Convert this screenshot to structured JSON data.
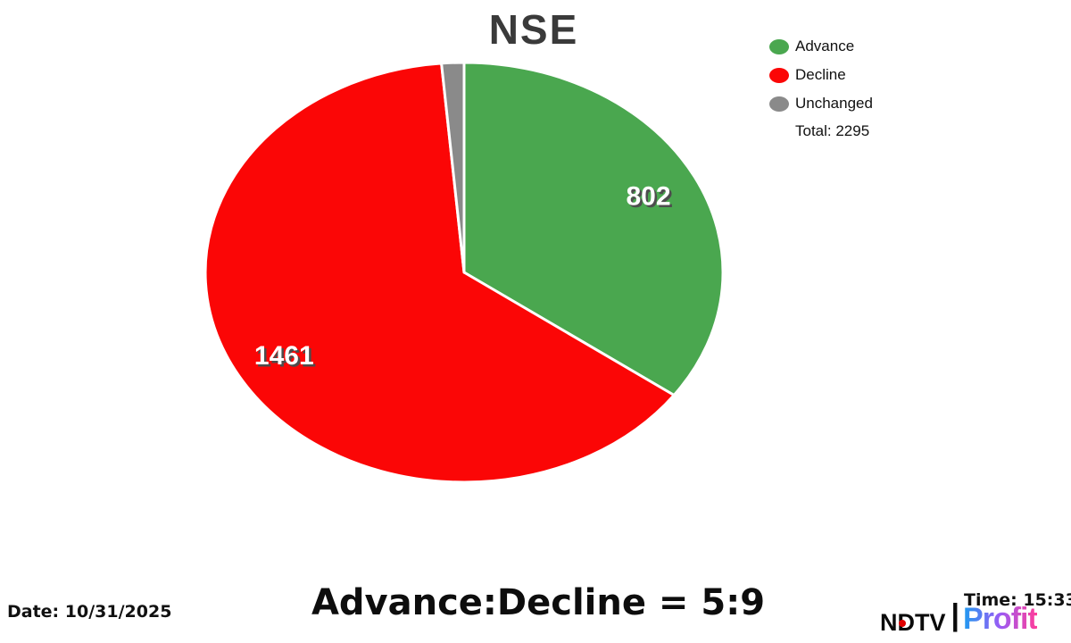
{
  "title": "NSE",
  "chart_data": {
    "type": "pie",
    "title": "NSE",
    "categories": [
      "Advance",
      "Decline",
      "Unchanged"
    ],
    "values": [
      802,
      1461,
      32
    ],
    "colors": [
      "#4aa74f",
      "#fb0606",
      "#8a8a8a"
    ],
    "slice_labels": [
      "802",
      "1461",
      ""
    ],
    "total": 2295,
    "start_angle": "top",
    "direction": "clockwise",
    "legend_position": "top-right",
    "label_color": "#ffffff",
    "label_shadow_color": "#4d4d4d"
  },
  "legend": {
    "items": [
      {
        "label": "Advance",
        "color": "#4aa74f"
      },
      {
        "label": "Decline",
        "color": "#fb0606"
      },
      {
        "label": "Unchanged",
        "color": "#8a8a8a"
      }
    ],
    "total_label": "Total: 2295"
  },
  "footer": {
    "date": "Date: 10/31/2025",
    "ratio": "Advance:Decline = 5:9",
    "time": "Time: 15:33"
  },
  "logo": {
    "ndtv": "NDTV",
    "separator": "|",
    "profit": "Profit",
    "dot_color": "#e00000",
    "profit_gradient": [
      "#1e9bf0",
      "#9a5cf5",
      "#ff3d9a"
    ]
  }
}
